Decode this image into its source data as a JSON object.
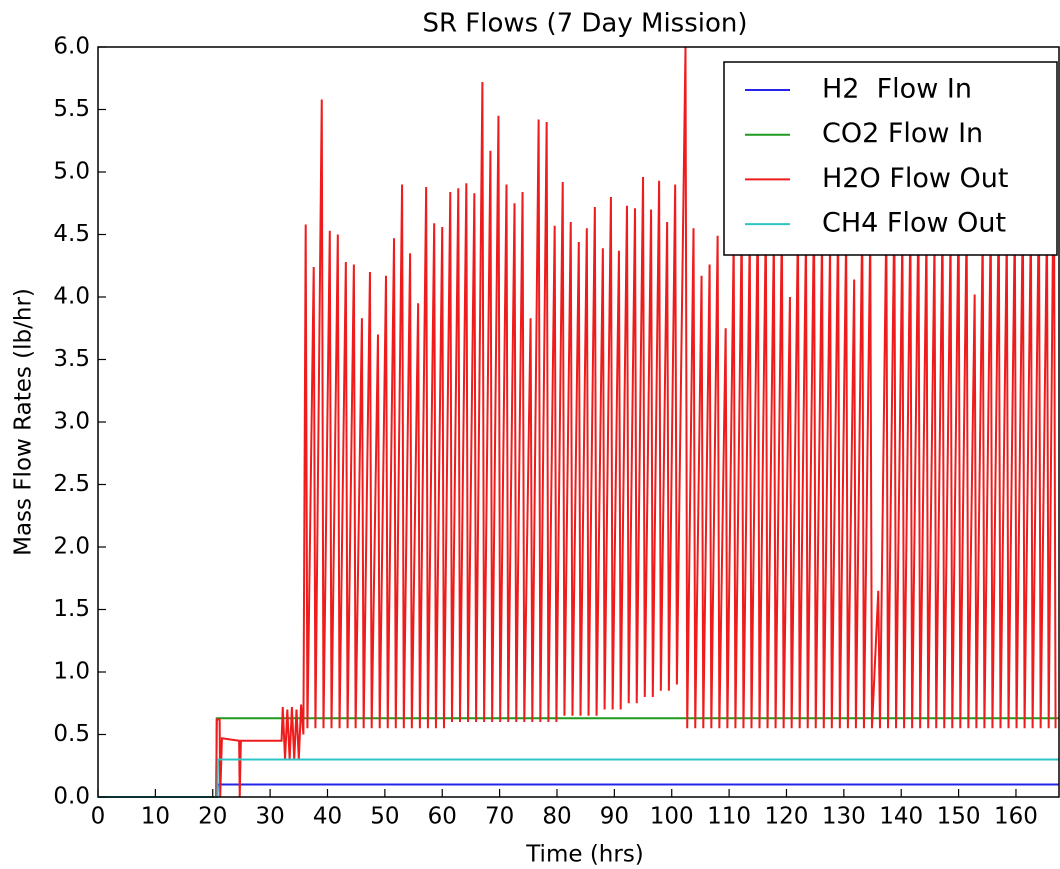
{
  "chart_data": {
    "type": "line",
    "title": "SR Flows (7 Day Mission)",
    "x_label": "Time (hrs)",
    "y_label": "Mass Flow Rates (lb/hr)",
    "xlim": [
      0,
      167.5
    ],
    "ylim": [
      0,
      6.0
    ],
    "xticks": [
      0,
      10,
      20,
      30,
      40,
      50,
      60,
      70,
      80,
      90,
      100,
      110,
      120,
      130,
      140,
      150,
      160
    ],
    "yticks": [
      {
        "value": 0,
        "label": "0.0"
      },
      0.5,
      {
        "value": 1,
        "label": "1.0"
      },
      1.5,
      {
        "value": 2,
        "label": "2.0"
      },
      2.5,
      {
        "value": 3,
        "label": "3.0"
      },
      3.5,
      {
        "value": 4,
        "label": "4.0"
      },
      4.5,
      {
        "value": 5,
        "label": "5.0"
      },
      5.5,
      {
        "value": 6,
        "label": "6.0"
      }
    ],
    "legend": "upper right",
    "series": [
      {
        "name": "H2  Flow In",
        "color": "#2424e8",
        "x": [
          0,
          20.8,
          20.9,
          167.5
        ],
        "values": [
          0,
          0,
          0.1,
          0.1
        ]
      },
      {
        "name": "CO2 Flow In",
        "color": "#1f9a1f",
        "x": [
          0,
          20.6,
          20.7,
          167.5
        ],
        "values": [
          0,
          0,
          0.63,
          0.63
        ]
      },
      {
        "name": "H2O Flow Out",
        "color": "#ee1c1c",
        "x": [
          0,
          20.6,
          20.7,
          21.2,
          21.3,
          21.6,
          24.6,
          24.7,
          24.9,
          32,
          32.2,
          32.6,
          33,
          33.4,
          33.8,
          34.2,
          34.6,
          35,
          35.4,
          35.8,
          36.2,
          36.5,
          37.6,
          37.9,
          39.0,
          39.3,
          40.4,
          40.7,
          41.8,
          42.1,
          43.2,
          43.5,
          44.6,
          44.9,
          46.0,
          46.3,
          47.4,
          47.7,
          48.8,
          49.1,
          50.2,
          50.5,
          51.6,
          51.9,
          53.0,
          53.3,
          54.4,
          54.7,
          55.8,
          56.1,
          57.2,
          57.5,
          58.6,
          58.9,
          60.0,
          60.3,
          61.4,
          61.7,
          62.8,
          63.1,
          64.2,
          64.5,
          65.6,
          65.9,
          67.0,
          67.3,
          68.4,
          68.7,
          69.8,
          70.1,
          71.2,
          71.5,
          72.6,
          72.9,
          74.0,
          74.3,
          75.4,
          75.7,
          76.8,
          77.1,
          78.2,
          78.5,
          79.6,
          79.9,
          81.0,
          81.3,
          82.4,
          82.7,
          83.8,
          84.1,
          85.2,
          85.5,
          86.6,
          86.9,
          88.0,
          88.3,
          89.4,
          89.7,
          90.8,
          91.1,
          92.2,
          92.5,
          93.6,
          93.9,
          95.0,
          95.3,
          96.4,
          96.7,
          97.8,
          98.1,
          99.2,
          99.5,
          100.6,
          100.9,
          102.4,
          102.7,
          103.8,
          104.1,
          105.2,
          105.5,
          106.6,
          106.9,
          108.0,
          108.3,
          109.4,
          109.7,
          110.8,
          111.1,
          112.2,
          112.5,
          113.6,
          113.9,
          115.0,
          115.3,
          116.4,
          116.7,
          117.8,
          118.1,
          119.2,
          119.5,
          120.6,
          120.9,
          122.0,
          122.3,
          123.4,
          123.7,
          124.8,
          125.1,
          126.2,
          126.5,
          127.6,
          127.9,
          129.0,
          129.3,
          130.4,
          130.7,
          131.8,
          132.1,
          133.2,
          133.5,
          134.6,
          134.9,
          136.0,
          136.3,
          137.4,
          137.7,
          138.8,
          139.1,
          140.2,
          140.5,
          141.6,
          141.9,
          143.0,
          143.3,
          144.4,
          144.7,
          145.8,
          146.1,
          147.2,
          147.5,
          148.6,
          148.9,
          150.0,
          150.3,
          151.4,
          151.7,
          152.8,
          153.1,
          154.2,
          154.5,
          155.6,
          155.9,
          157.0,
          157.3,
          158.4,
          158.7,
          159.8,
          160.1,
          161.2,
          161.5,
          162.6,
          162.9,
          164.0,
          164.3,
          165.4,
          165.7,
          166.6,
          166.9
        ],
        "values": [
          0,
          0,
          0.62,
          0.62,
          0,
          0.47,
          0.45,
          0,
          0.45,
          0.45,
          0.72,
          0.3,
          0.7,
          0.3,
          0.72,
          0.3,
          0.7,
          0.3,
          0.74,
          0.5,
          4.58,
          0.55,
          4.24,
          0.55,
          5.58,
          0.55,
          4.53,
          0.55,
          4.5,
          0.55,
          4.28,
          0.55,
          4.26,
          0.55,
          3.83,
          0.55,
          4.2,
          0.55,
          3.7,
          0.55,
          4.17,
          0.55,
          4.47,
          0.55,
          4.9,
          0.55,
          4.35,
          0.55,
          3.95,
          0.55,
          4.88,
          0.55,
          4.59,
          0.55,
          4.56,
          0.55,
          4.84,
          0.6,
          4.87,
          0.6,
          4.91,
          0.6,
          4.83,
          0.6,
          5.72,
          0.6,
          5.17,
          0.6,
          5.45,
          0.6,
          4.9,
          0.6,
          4.75,
          0.6,
          4.84,
          0.6,
          3.83,
          0.6,
          5.42,
          0.6,
          5.4,
          0.6,
          4.57,
          0.6,
          4.92,
          0.65,
          4.6,
          0.65,
          4.44,
          0.65,
          4.55,
          0.65,
          4.72,
          0.65,
          4.39,
          0.7,
          4.8,
          0.7,
          4.37,
          0.7,
          4.73,
          0.75,
          4.71,
          0.75,
          4.96,
          0.8,
          4.7,
          0.8,
          4.93,
          0.85,
          4.6,
          0.85,
          4.9,
          0.9,
          6.0,
          0.55,
          4.55,
          0.55,
          4.17,
          0.55,
          4.26,
          0.55,
          4.49,
          0.55,
          3.75,
          0.55,
          4.45,
          0.55,
          4.6,
          0.55,
          4.5,
          0.55,
          4.7,
          0.55,
          4.6,
          0.55,
          4.5,
          0.55,
          4.6,
          0.55,
          4.0,
          0.55,
          4.6,
          0.55,
          4.5,
          0.55,
          4.7,
          0.55,
          4.5,
          0.55,
          4.43,
          0.55,
          4.6,
          0.55,
          4.5,
          0.55,
          4.14,
          0.55,
          4.6,
          0.55,
          4.5,
          0.55,
          1.65,
          0.55,
          4.6,
          0.55,
          4.7,
          0.55,
          4.5,
          0.55,
          4.6,
          0.55,
          4.7,
          0.55,
          4.5,
          0.55,
          4.44,
          0.55,
          4.6,
          0.55,
          4.5,
          0.55,
          4.7,
          0.55,
          4.6,
          0.55,
          4.02,
          0.55,
          4.5,
          0.55,
          4.6,
          0.55,
          4.7,
          0.55,
          4.5,
          0.55,
          4.6,
          0.55,
          4.7,
          0.55,
          4.6,
          0.55,
          4.8,
          0.55,
          4.6,
          0.55,
          5.28,
          0.55
        ]
      },
      {
        "name": "CH4 Flow Out",
        "color": "#2cc4c4",
        "x": [
          0,
          20.8,
          20.9,
          167.5
        ],
        "values": [
          0,
          0,
          0.3,
          0.3
        ]
      }
    ]
  }
}
